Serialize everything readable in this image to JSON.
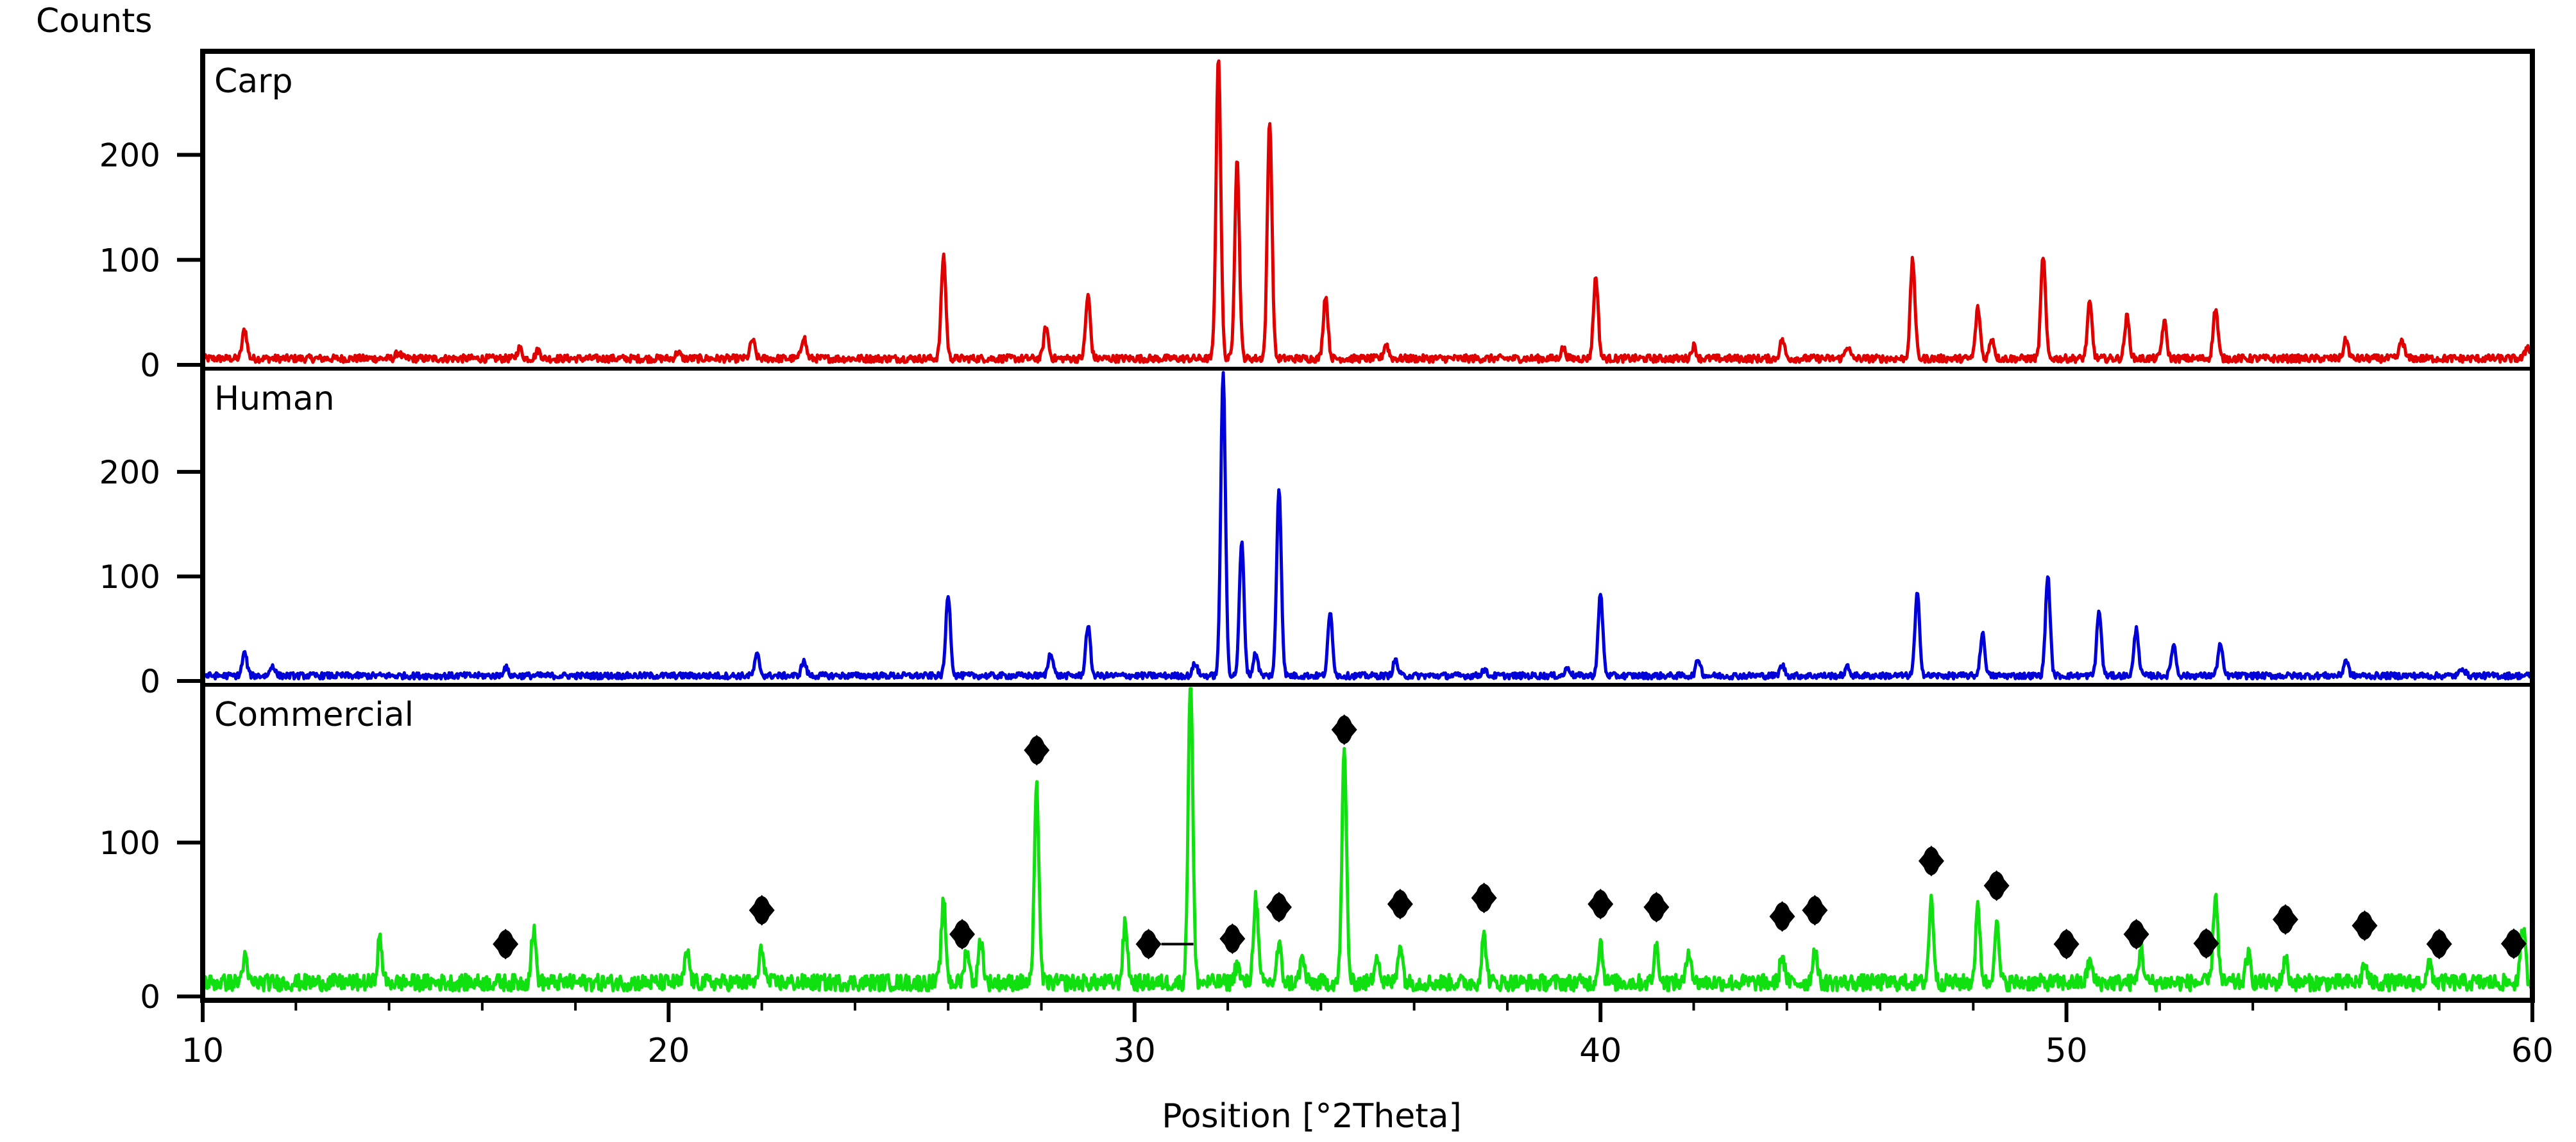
{
  "chart_data": {
    "type": "line",
    "ylabel": "Counts",
    "xlabel": "Position [°2Theta]",
    "xlim": [
      10,
      60
    ],
    "xticks": [
      10,
      20,
      30,
      40,
      50,
      60
    ],
    "panels": [
      {
        "label": "Carp",
        "color": "#e00000",
        "ylim": [
          0,
          295
        ],
        "yticks": [
          0,
          100,
          200
        ],
        "baseline": 6,
        "peaks": [
          [
            10.9,
            28
          ],
          [
            14.2,
            6
          ],
          [
            16.8,
            10
          ],
          [
            17.2,
            8
          ],
          [
            20.2,
            6
          ],
          [
            21.8,
            18
          ],
          [
            22.9,
            21
          ],
          [
            25.9,
            98
          ],
          [
            28.1,
            30
          ],
          [
            29.0,
            60
          ],
          [
            31.8,
            290
          ],
          [
            32.2,
            190
          ],
          [
            32.9,
            228
          ],
          [
            34.1,
            60
          ],
          [
            35.4,
            14
          ],
          [
            39.2,
            10
          ],
          [
            39.9,
            78
          ],
          [
            42.0,
            12
          ],
          [
            43.9,
            18
          ],
          [
            45.3,
            12
          ],
          [
            46.7,
            94
          ],
          [
            48.1,
            48
          ],
          [
            48.4,
            20
          ],
          [
            49.5,
            98
          ],
          [
            50.5,
            53
          ],
          [
            51.3,
            40
          ],
          [
            52.1,
            35
          ],
          [
            53.2,
            48
          ],
          [
            56.0,
            18
          ],
          [
            57.2,
            18
          ],
          [
            59.9,
            12
          ]
        ]
      },
      {
        "label": "Human",
        "color": "#0000d8",
        "ylim": [
          0,
          295
        ],
        "yticks": [
          0,
          100,
          200
        ],
        "baseline": 5,
        "peaks": [
          [
            10.9,
            22
          ],
          [
            11.5,
            10
          ],
          [
            16.5,
            8
          ],
          [
            21.9,
            20
          ],
          [
            22.9,
            14
          ],
          [
            26.0,
            78
          ],
          [
            28.2,
            23
          ],
          [
            29.0,
            48
          ],
          [
            31.3,
            12
          ],
          [
            31.9,
            290
          ],
          [
            32.3,
            128
          ],
          [
            32.6,
            22
          ],
          [
            33.1,
            180
          ],
          [
            34.2,
            60
          ],
          [
            35.6,
            15
          ],
          [
            37.5,
            6
          ],
          [
            39.3,
            8
          ],
          [
            40.0,
            78
          ],
          [
            42.1,
            16
          ],
          [
            43.9,
            10
          ],
          [
            45.3,
            8
          ],
          [
            46.8,
            78
          ],
          [
            48.2,
            40
          ],
          [
            49.6,
            96
          ],
          [
            50.7,
            62
          ],
          [
            51.5,
            45
          ],
          [
            52.3,
            30
          ],
          [
            53.3,
            30
          ],
          [
            56.0,
            15
          ],
          [
            58.5,
            8
          ]
        ]
      },
      {
        "label": "Commercial",
        "color": "#10e010",
        "ylim": [
          0,
          200
        ],
        "yticks": [
          0,
          100
        ],
        "baseline": 9,
        "peaks": [
          [
            10.9,
            16
          ],
          [
            13.8,
            28
          ],
          [
            17.1,
            34
          ],
          [
            20.4,
            20
          ],
          [
            22.0,
            22
          ],
          [
            25.9,
            52
          ],
          [
            26.4,
            22
          ],
          [
            26.7,
            28
          ],
          [
            27.9,
            126
          ],
          [
            29.8,
            38
          ],
          [
            31.2,
            200
          ],
          [
            32.2,
            12
          ],
          [
            32.6,
            56
          ],
          [
            33.1,
            24
          ],
          [
            33.6,
            16
          ],
          [
            34.5,
            150
          ],
          [
            35.2,
            20
          ],
          [
            35.7,
            26
          ],
          [
            37.5,
            30
          ],
          [
            40.0,
            26
          ],
          [
            41.2,
            24
          ],
          [
            41.9,
            22
          ],
          [
            43.9,
            18
          ],
          [
            44.6,
            22
          ],
          [
            47.1,
            54
          ],
          [
            48.1,
            48
          ],
          [
            48.5,
            38
          ],
          [
            50.5,
            14
          ],
          [
            51.6,
            22
          ],
          [
            53.2,
            58
          ],
          [
            53.9,
            18
          ],
          [
            54.7,
            16
          ],
          [
            56.4,
            12
          ],
          [
            57.8,
            12
          ],
          [
            59.8,
            36
          ]
        ],
        "markers": [
          16.5,
          22.0,
          26.3,
          27.9,
          30.3,
          32.1,
          33.1,
          34.5,
          35.7,
          37.5,
          40.0,
          41.2,
          43.9,
          44.6,
          47.1,
          48.5,
          50.0,
          51.5,
          53.0,
          54.7,
          56.4,
          58.0,
          59.6
        ]
      }
    ]
  }
}
